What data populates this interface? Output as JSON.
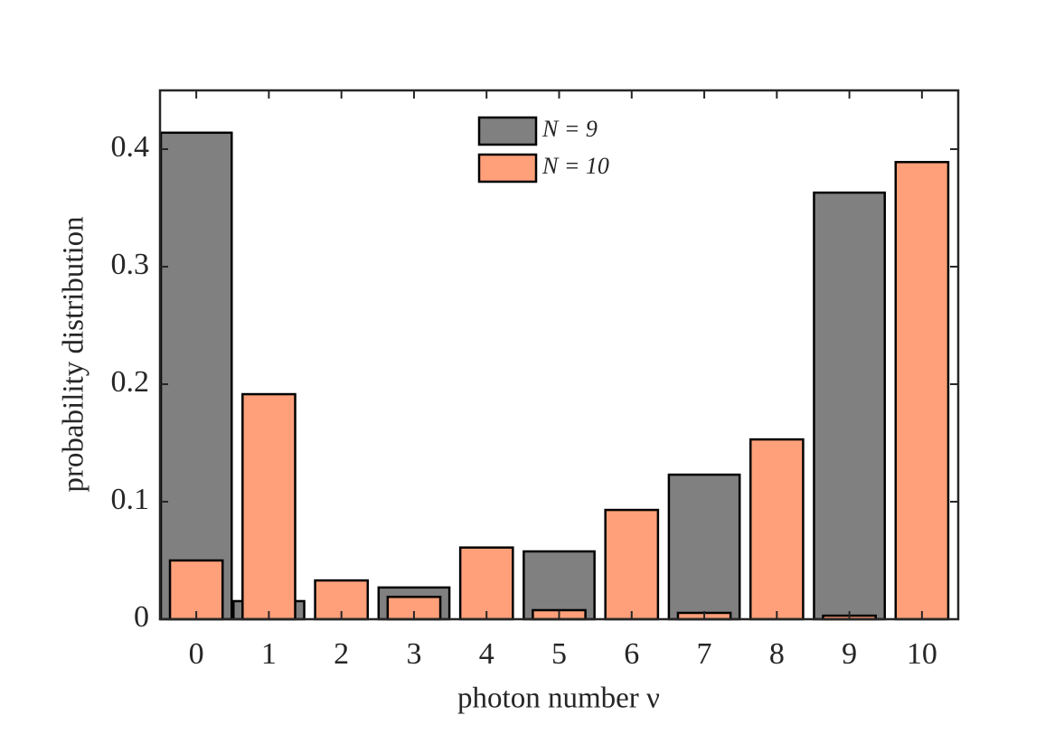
{
  "chart_data": {
    "type": "bar",
    "x_label": "photon number ν",
    "y_label": "probability distribution",
    "categories": [
      "0",
      "1",
      "2",
      "3",
      "4",
      "5",
      "6",
      "7",
      "8",
      "9",
      "10"
    ],
    "series": [
      {
        "name": "N = 9",
        "color": "#808080",
        "values": [
          0.414,
          0.0154,
          0,
          0.027,
          0,
          0.0577,
          0,
          0.123,
          0,
          0.363,
          0
        ]
      },
      {
        "name": "N = 10",
        "color": "#ffa07a",
        "values": [
          0.05,
          0.1915,
          0.033,
          0.019,
          0.061,
          0.0077,
          0.093,
          0.0054,
          0.153,
          0.003,
          0.389
        ]
      }
    ],
    "ylim": [
      0,
      0.45
    ],
    "yticks": [
      0,
      0.1,
      0.2,
      0.3,
      0.4
    ],
    "legend": "top"
  }
}
